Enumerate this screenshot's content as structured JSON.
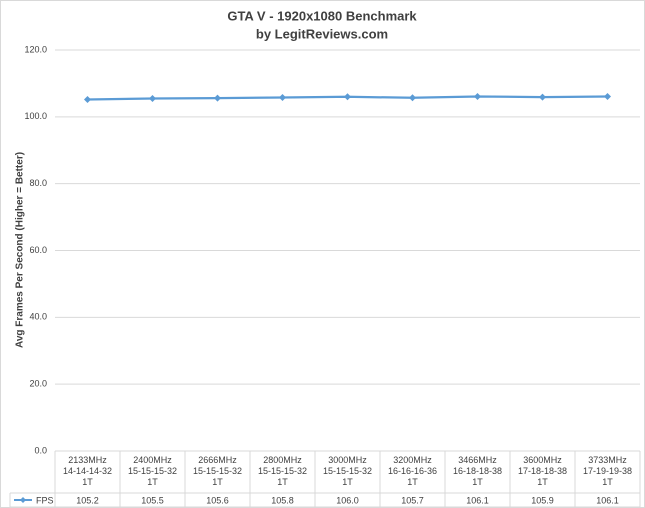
{
  "chart_data": {
    "type": "line",
    "title": "GTA V - 1920x1080 Benchmark",
    "subtitle": "by LegitReviews.com",
    "y_label": "Avg Frames Per Second (Higher = Better)",
    "categories": [
      "2133MHz\n14-14-14-32\n1T",
      "2400MHz\n15-15-15-32\n1T",
      "2666MHz\n15-15-15-32\n1T",
      "2800MHz\n15-15-15-32\n1T",
      "3000MHz\n15-15-15-32\n1T",
      "3200MHz\n16-16-16-36\n1T",
      "3466MHz\n16-18-18-38\n1T",
      "3600MHz\n17-18-18-38\n1T",
      "3733MHz\n17-19-19-38\n1T"
    ],
    "series": [
      {
        "name": "FPS",
        "color": "#5b9bd5",
        "values": [
          105.2,
          105.5,
          105.6,
          105.8,
          106.0,
          105.7,
          106.1,
          105.9,
          106.1
        ],
        "value_labels": [
          "105.2",
          "105.5",
          "105.6",
          "105.8",
          "106.0",
          "105.7",
          "106.1",
          "105.9",
          "106.1"
        ]
      }
    ],
    "ylim": [
      0,
      120
    ],
    "yticks": [
      {
        "value": 0,
        "label": "0.0"
      },
      {
        "value": 20,
        "label": "20.0"
      },
      {
        "value": 40,
        "label": "40.0"
      },
      {
        "value": 60,
        "label": "60.0"
      },
      {
        "value": 80,
        "label": "80.0"
      },
      {
        "value": 100,
        "label": "100.0"
      },
      {
        "value": 120,
        "label": "120.0"
      }
    ],
    "grid": true
  }
}
